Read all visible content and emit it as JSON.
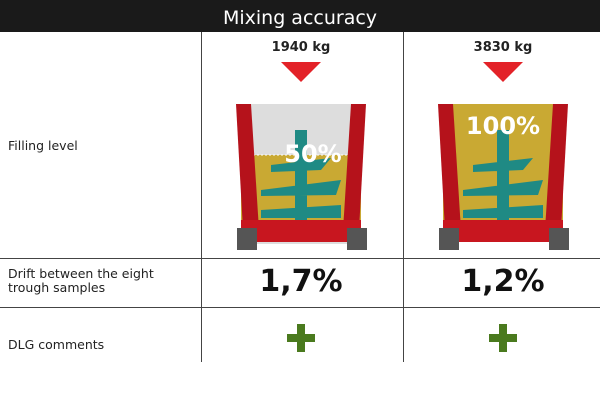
{
  "title": "Mixing accuracy",
  "rows": {
    "filling_level": "Filling level",
    "drift": "Drift between the eight trough samples",
    "dlg": "DLG comments"
  },
  "columns": [
    {
      "weight": "1940 kg",
      "fill_label": "50%",
      "fill_fraction": 0.5,
      "drift": "1,7%",
      "dlg_icon": "plus-icon"
    },
    {
      "weight": "3830 kg",
      "fill_label": "100%",
      "fill_fraction": 1.0,
      "drift": "1,2%",
      "dlg_icon": "plus-icon"
    }
  ],
  "colors": {
    "arrow": "#e32228",
    "feed": "#c9a933",
    "auger": "#1f8a84",
    "frame": "#b5121b",
    "plus": "#4a7a1e"
  }
}
